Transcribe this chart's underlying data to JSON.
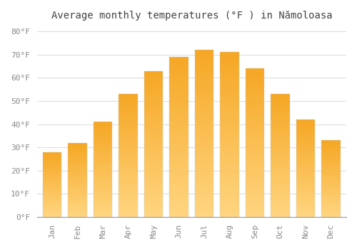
{
  "title": "Average monthly temperatures (°F ) in Nămoloasa",
  "months": [
    "Jan",
    "Feb",
    "Mar",
    "Apr",
    "May",
    "Jun",
    "Jul",
    "Aug",
    "Sep",
    "Oct",
    "Nov",
    "Dec"
  ],
  "values": [
    28,
    32,
    41,
    53,
    63,
    69,
    72,
    71,
    64,
    53,
    42,
    33
  ],
  "bar_color_top": "#F5A623",
  "bar_color_bottom": "#FFD580",
  "bar_edge_color": "#CCCCCC",
  "background_color": "#FFFFFF",
  "grid_color": "#DDDDDD",
  "yticks": [
    0,
    10,
    20,
    30,
    40,
    50,
    60,
    70,
    80
  ],
  "ylim": [
    0,
    83
  ],
  "title_fontsize": 10,
  "tick_fontsize": 8,
  "tick_color": "#888888"
}
